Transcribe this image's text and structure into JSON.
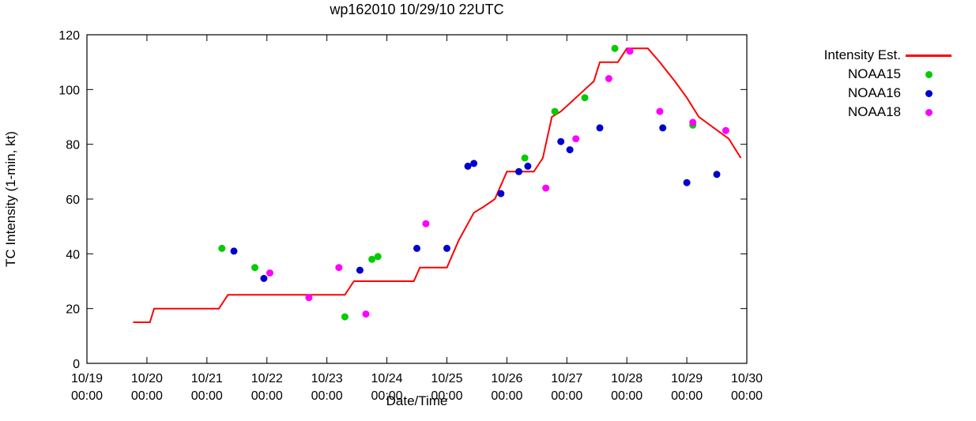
{
  "title": "wp162010 10/29/10 22UTC",
  "chart_data": {
    "type": "line",
    "title": "wp162010 10/29/10 22UTC",
    "xlabel": "Date/Time",
    "ylabel": "TC Intensity (1-min, kt)",
    "xlim": [
      19,
      30
    ],
    "ylim": [
      0,
      120
    ],
    "ytick_step": 20,
    "grid": false,
    "legend_position": "right-outside-top",
    "x_units": "day of October 2010 (fractional = time of day, UTC)",
    "xticks": [
      {
        "value": 19,
        "line1": "10/19",
        "line2": "00:00"
      },
      {
        "value": 20,
        "line1": "10/20",
        "line2": "00:00"
      },
      {
        "value": 21,
        "line1": "10/21",
        "line2": "00:00"
      },
      {
        "value": 22,
        "line1": "10/22",
        "line2": "00:00"
      },
      {
        "value": 23,
        "line1": "10/23",
        "line2": "00:00"
      },
      {
        "value": 24,
        "line1": "10/24",
        "line2": "00:00"
      },
      {
        "value": 25,
        "line1": "10/25",
        "line2": "00:00"
      },
      {
        "value": 26,
        "line1": "10/26",
        "line2": "00:00"
      },
      {
        "value": 27,
        "line1": "10/27",
        "line2": "00:00"
      },
      {
        "value": 28,
        "line1": "10/28",
        "line2": "00:00"
      },
      {
        "value": 29,
        "line1": "10/29",
        "line2": "00:00"
      },
      {
        "value": 30,
        "line1": "10/30",
        "line2": "00:00"
      }
    ],
    "series": [
      {
        "name": "Intensity Est.",
        "type": "line",
        "color": "#ff0000",
        "points": [
          [
            19.77,
            15
          ],
          [
            20.05,
            15
          ],
          [
            20.12,
            20
          ],
          [
            21.2,
            20
          ],
          [
            21.35,
            25
          ],
          [
            23.3,
            25
          ],
          [
            23.45,
            30
          ],
          [
            24.45,
            30
          ],
          [
            24.55,
            35
          ],
          [
            25.0,
            35
          ],
          [
            25.2,
            45
          ],
          [
            25.45,
            55
          ],
          [
            25.6,
            57
          ],
          [
            25.8,
            60
          ],
          [
            26.0,
            70
          ],
          [
            26.45,
            70
          ],
          [
            26.6,
            75
          ],
          [
            26.75,
            90
          ],
          [
            26.9,
            92
          ],
          [
            27.05,
            95
          ],
          [
            27.3,
            100
          ],
          [
            27.45,
            103
          ],
          [
            27.55,
            110
          ],
          [
            27.85,
            110
          ],
          [
            28.0,
            115
          ],
          [
            28.35,
            115
          ],
          [
            28.55,
            110
          ],
          [
            28.8,
            103
          ],
          [
            29.0,
            97
          ],
          [
            29.2,
            90
          ],
          [
            29.45,
            86
          ],
          [
            29.7,
            82
          ],
          [
            29.9,
            75
          ]
        ]
      },
      {
        "name": "NOAA15",
        "type": "scatter",
        "color": "#00cc00",
        "points": [
          [
            21.25,
            42
          ],
          [
            21.8,
            35
          ],
          [
            23.3,
            17
          ],
          [
            23.75,
            38
          ],
          [
            23.85,
            39
          ],
          [
            26.3,
            75
          ],
          [
            26.8,
            92
          ],
          [
            27.3,
            97
          ],
          [
            27.8,
            115
          ],
          [
            29.1,
            87
          ]
        ]
      },
      {
        "name": "NOAA16",
        "type": "scatter",
        "color": "#0000cd",
        "points": [
          [
            21.45,
            41
          ],
          [
            21.95,
            31
          ],
          [
            23.55,
            34
          ],
          [
            24.5,
            42
          ],
          [
            25.0,
            42
          ],
          [
            25.35,
            72
          ],
          [
            25.45,
            73
          ],
          [
            25.9,
            62
          ],
          [
            26.2,
            70
          ],
          [
            26.35,
            72
          ],
          [
            26.9,
            81
          ],
          [
            27.05,
            78
          ],
          [
            27.55,
            86
          ],
          [
            28.6,
            86
          ],
          [
            29.0,
            66
          ],
          [
            29.5,
            69
          ]
        ]
      },
      {
        "name": "NOAA18",
        "type": "scatter",
        "color": "#ff00ff",
        "points": [
          [
            22.05,
            33
          ],
          [
            22.7,
            24
          ],
          [
            23.2,
            35
          ],
          [
            23.65,
            18
          ],
          [
            24.65,
            51
          ],
          [
            26.65,
            64
          ],
          [
            27.15,
            82
          ],
          [
            27.7,
            104
          ],
          [
            28.05,
            114
          ],
          [
            28.55,
            92
          ],
          [
            29.1,
            88
          ],
          [
            29.65,
            85
          ]
        ]
      }
    ]
  }
}
